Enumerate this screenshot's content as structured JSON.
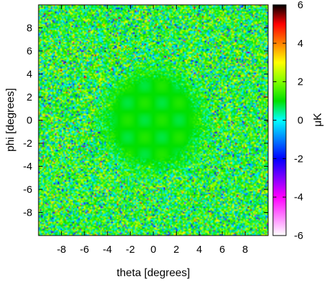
{
  "chart_data": {
    "type": "heatmap",
    "title": "",
    "xlabel": "theta [degrees]",
    "ylabel": "phi [degrees]",
    "colorbar_label": "μK",
    "xlim": [
      -10,
      10
    ],
    "ylim": [
      -10,
      10
    ],
    "zlim": [
      -6,
      6
    ],
    "x_ticks": [
      -8,
      -6,
      -4,
      -2,
      0,
      2,
      4,
      6,
      8
    ],
    "y_ticks": [
      -8,
      -6,
      -4,
      -2,
      0,
      2,
      4,
      6,
      8
    ],
    "colorbar_ticks": [
      -6,
      -4,
      -2,
      0,
      2,
      4,
      6
    ],
    "x_tick_labels": [
      "-8",
      "-6",
      "-4",
      "-2",
      "0",
      "2",
      "4",
      "6",
      "8"
    ],
    "y_tick_labels": [
      "-8",
      "-6",
      "-4",
      "-2",
      "0",
      "2",
      "4",
      "6",
      "8"
    ],
    "colorbar_tick_labels": [
      "-6",
      "-4",
      "-2",
      "0",
      "2",
      "4",
      "6"
    ],
    "grid": false,
    "features": {
      "background": "random temperature fluctuations, mostly 0 to 2 μK with scattered -2 and 4 μK pixels",
      "smooth_disc": {
        "center": [
          0,
          0
        ],
        "radius_deg": 4.5,
        "level_uK": 1.0
      }
    },
    "colormap": [
      {
        "value": -6,
        "color": "#ffffff"
      },
      {
        "value": -4,
        "color": "#ff00ff"
      },
      {
        "value": -2,
        "color": "#0000ff"
      },
      {
        "value": 0,
        "color": "#00ffff"
      },
      {
        "value": 1,
        "color": "#00e000"
      },
      {
        "value": 2,
        "color": "#80ff00"
      },
      {
        "value": 3,
        "color": "#ffff00"
      },
      {
        "value": 4,
        "color": "#ff8000"
      },
      {
        "value": 5,
        "color": "#ff0000"
      },
      {
        "value": 6,
        "color": "#000000"
      }
    ]
  }
}
